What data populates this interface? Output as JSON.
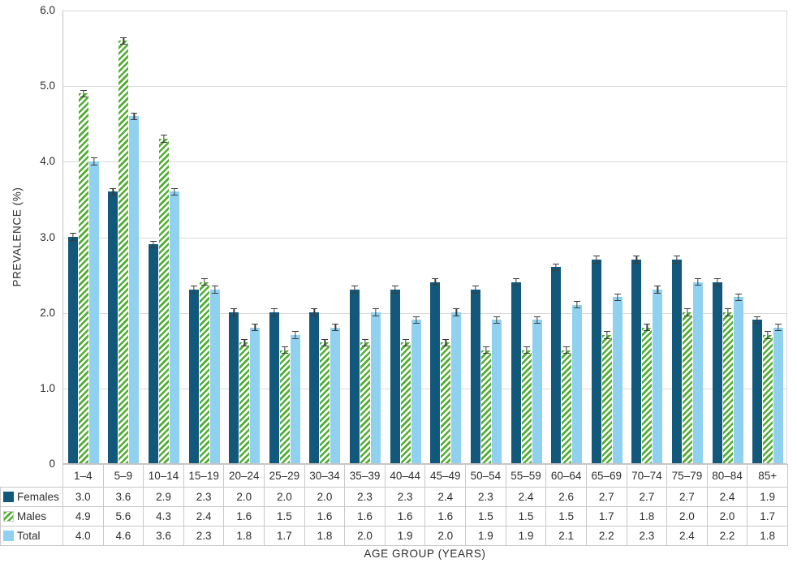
{
  "chart_data": {
    "type": "bar",
    "title": "",
    "xlabel": "AGE GROUP (YEARS)",
    "ylabel": "PREVALENCE (%)",
    "ylim": [
      0,
      6
    ],
    "grid": true,
    "legend_position": "table-rows-left",
    "error_bar_plus_minus": 0.05,
    "error_bar_color": "#3d3d3d",
    "yticks": [
      {
        "label": "6.0",
        "value": 6
      },
      {
        "label": "5.0",
        "value": 5
      },
      {
        "label": "4.0",
        "value": 4
      },
      {
        "label": "3.0",
        "value": 3
      },
      {
        "label": "2.0",
        "value": 2
      },
      {
        "label": "1.0",
        "value": 1
      },
      {
        "label": "0",
        "value": 0
      }
    ],
    "categories": [
      "1–4",
      "5–9",
      "10–14",
      "15–19",
      "20–24",
      "25–29",
      "30–34",
      "35–39",
      "40–44",
      "45–49",
      "50–54",
      "55–59",
      "60–64",
      "65–69",
      "70–74",
      "75–79",
      "80–84",
      "85+"
    ],
    "series": [
      {
        "name": "Females",
        "key": "females",
        "color": "#12587A",
        "pattern": "solid",
        "values": [
          3.0,
          3.6,
          2.9,
          2.3,
          2.0,
          2.0,
          2.0,
          2.3,
          2.3,
          2.4,
          2.3,
          2.4,
          2.6,
          2.7,
          2.7,
          2.7,
          2.4,
          1.9
        ]
      },
      {
        "name": "Males",
        "key": "males",
        "color": "#52AE32",
        "pattern": "diagonal-hatch",
        "values": [
          4.9,
          5.6,
          4.3,
          2.4,
          1.6,
          1.5,
          1.6,
          1.6,
          1.6,
          1.6,
          1.5,
          1.5,
          1.5,
          1.7,
          1.8,
          2.0,
          2.0,
          1.7
        ]
      },
      {
        "name": "Total",
        "key": "total",
        "color": "#8FD1EE",
        "pattern": "solid",
        "values": [
          4.0,
          4.6,
          3.6,
          2.3,
          1.8,
          1.7,
          1.8,
          2.0,
          1.9,
          2.0,
          1.9,
          1.9,
          2.1,
          2.2,
          2.3,
          2.4,
          2.2,
          1.8
        ]
      }
    ]
  }
}
